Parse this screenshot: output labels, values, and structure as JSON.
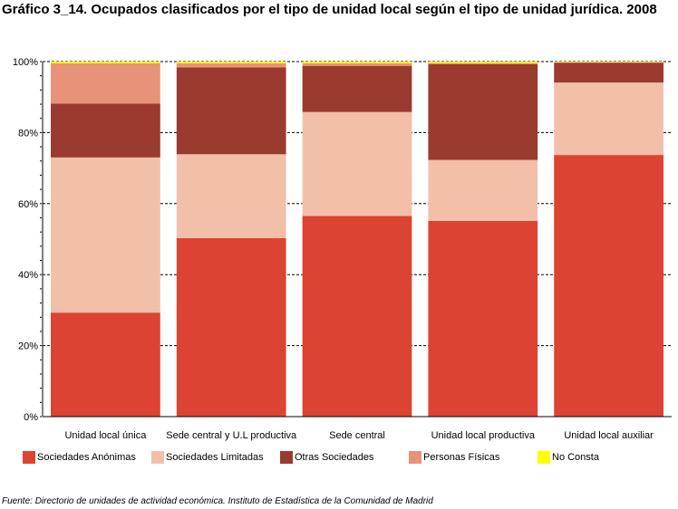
{
  "title": "Gráfico 3_14. Ocupados clasificados por el tipo de unidad local según el tipo de unidad jurídica. 2008",
  "footer": "Fuente: Directorio de unidades de actividad económica. Instituto de Estadística de la Comunidad de Madrid",
  "chart_data": {
    "type": "bar",
    "stacked": true,
    "percent": true,
    "title": "Gráfico 3_14. Ocupados clasificados por el tipo de unidad local según el tipo de unidad jurídica. 2008",
    "xlabel": "",
    "ylabel": "",
    "ylim": [
      0,
      100
    ],
    "yticks": [
      "0%",
      "20%",
      "40%",
      "60%",
      "80%",
      "100%"
    ],
    "grid": true,
    "legend_position": "bottom",
    "categories": [
      "Unidad local única",
      "Sede central y U.L productiva",
      "Sede central",
      "Unidad local productiva",
      "Unidad local auxiliar"
    ],
    "series": [
      {
        "name": "Sociedades Anónimas",
        "color": "#dc4332",
        "values": [
          29.3,
          50.3,
          56.5,
          55.1,
          73.7
        ]
      },
      {
        "name": "Sociedades Limitadas",
        "color": "#f2c0a8",
        "values": [
          43.7,
          23.6,
          29.3,
          17.2,
          20.4
        ]
      },
      {
        "name": "Otras Sociedades",
        "color": "#9b3a2e",
        "values": [
          15.2,
          24.5,
          13.0,
          27.0,
          5.6
        ]
      },
      {
        "name": "Personas Físicas",
        "color": "#e8927a",
        "values": [
          11.3,
          1.1,
          0.7,
          0.3,
          0.1
        ]
      },
      {
        "name": "No Consta",
        "color": "#ffff00",
        "values": [
          0.5,
          0.5,
          0.5,
          0.4,
          0.2
        ]
      }
    ]
  }
}
